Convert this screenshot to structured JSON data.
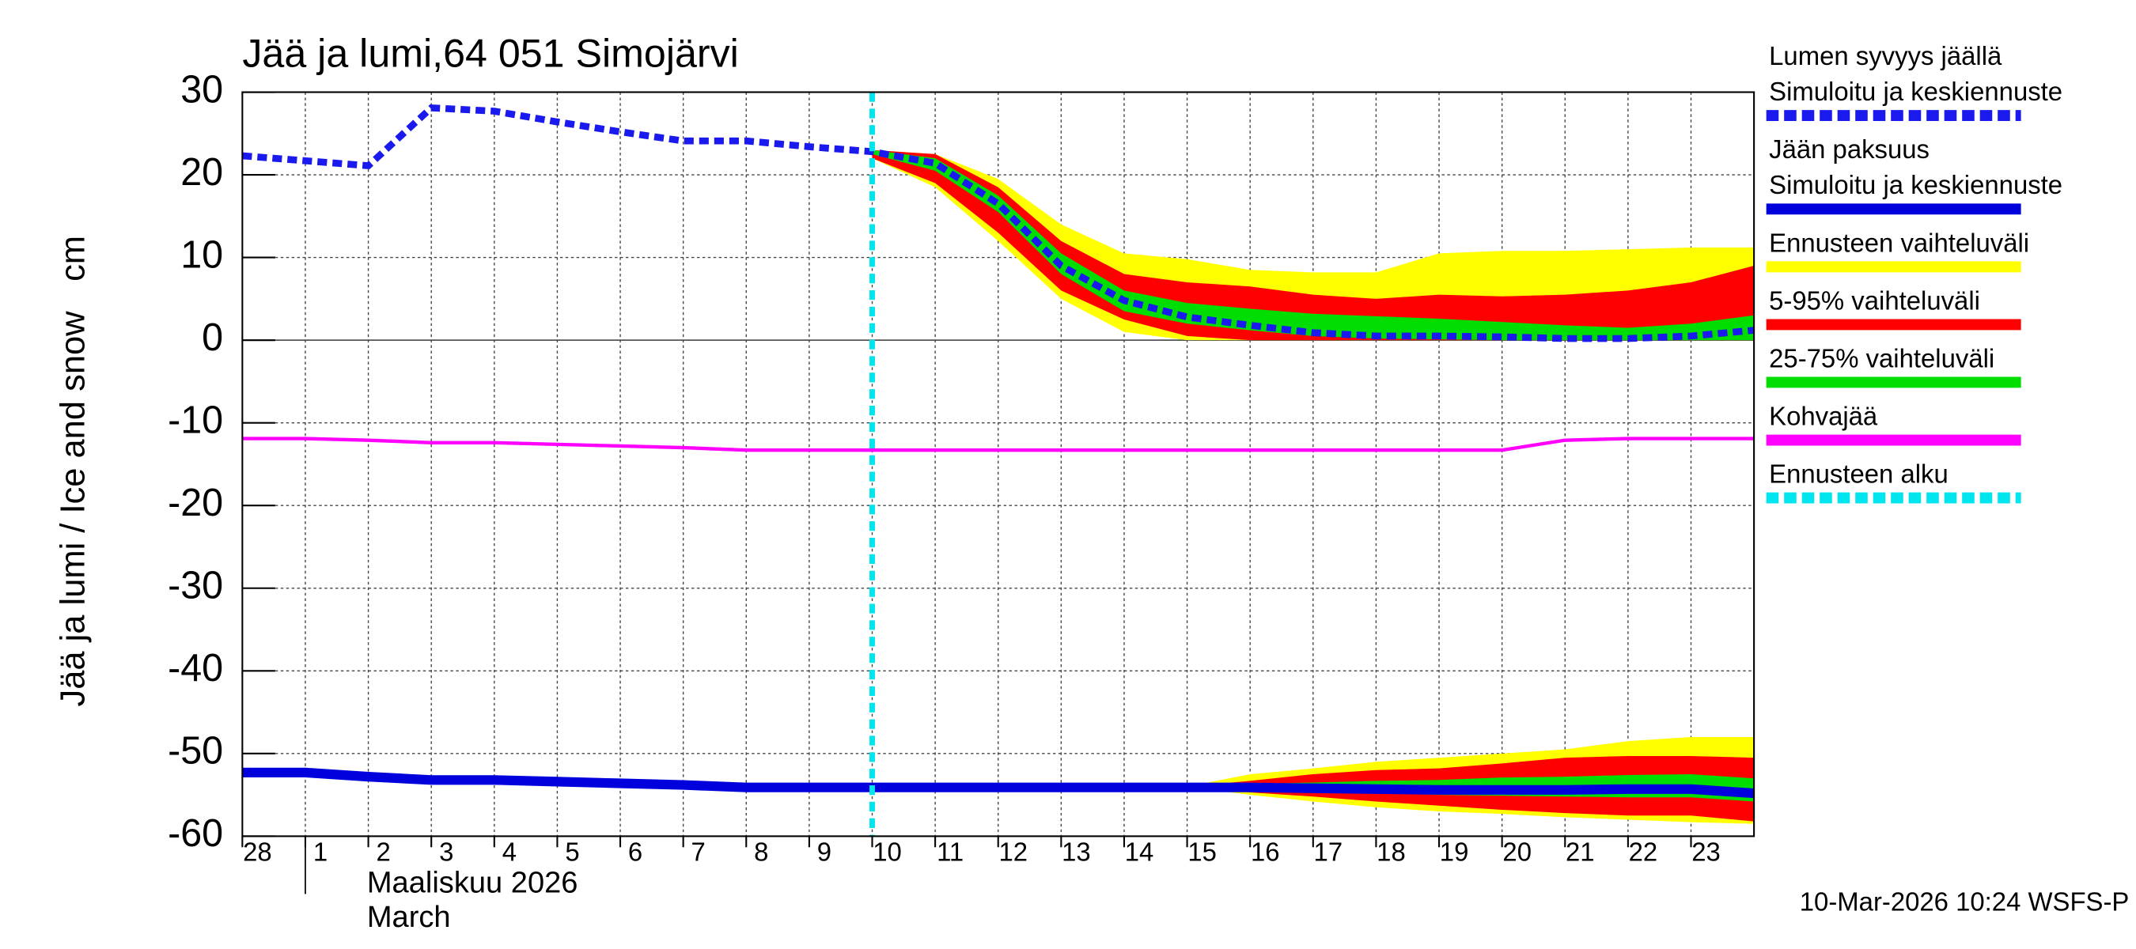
{
  "chart_data": {
    "type": "line",
    "title": "Jää ja lumi,64 051 Simojärvi",
    "y_label": "Jää ja lumi / Ice and snow",
    "y_unit": "cm",
    "x_month_label": "Maaliskuu 2026",
    "x_month_label_en": "March",
    "footer": "10-Mar-2026 10:24 WSFS-P",
    "xlim": [
      0,
      24
    ],
    "ylim": [
      -60,
      30
    ],
    "yticks": [
      -60,
      -50,
      -40,
      -30,
      -20,
      -10,
      0,
      10,
      20,
      30
    ],
    "xticks": [
      {
        "value": 0,
        "label": "28"
      },
      {
        "value": 1,
        "label": "1"
      },
      {
        "value": 2,
        "label": "2"
      },
      {
        "value": 3,
        "label": "3"
      },
      {
        "value": 4,
        "label": "4"
      },
      {
        "value": 5,
        "label": "5"
      },
      {
        "value": 6,
        "label": "6"
      },
      {
        "value": 7,
        "label": "7"
      },
      {
        "value": 8,
        "label": "8"
      },
      {
        "value": 9,
        "label": "9"
      },
      {
        "value": 10,
        "label": "10"
      },
      {
        "value": 11,
        "label": "11"
      },
      {
        "value": 12,
        "label": "12"
      },
      {
        "value": 13,
        "label": "13"
      },
      {
        "value": 14,
        "label": "14"
      },
      {
        "value": 15,
        "label": "15"
      },
      {
        "value": 16,
        "label": "16"
      },
      {
        "value": 17,
        "label": "17"
      },
      {
        "value": 18,
        "label": "18"
      },
      {
        "value": 19,
        "label": "19"
      },
      {
        "value": 20,
        "label": "20"
      },
      {
        "value": 21,
        "label": "21"
      },
      {
        "value": 22,
        "label": "22"
      },
      {
        "value": 23,
        "label": "23"
      }
    ],
    "month_start": 1,
    "grid": true,
    "forecast_start": 10,
    "bands": [
      {
        "color": "#ffff00",
        "x": [
          10,
          11,
          12,
          13,
          14,
          15,
          16,
          17,
          18,
          19,
          20,
          21,
          22,
          23,
          24
        ],
        "upper": [
          23,
          22.5,
          19.5,
          14,
          10.5,
          9.8,
          8.5,
          8.2,
          8.2,
          10.5,
          10.8,
          10.8,
          11,
          11.2,
          11.2
        ],
        "lower": [
          22,
          18.5,
          12,
          5,
          1,
          0,
          0,
          0,
          0,
          0,
          0,
          0,
          0,
          0,
          0
        ]
      },
      {
        "color": "#ff0000",
        "x": [
          10,
          11,
          12,
          13,
          14,
          15,
          16,
          17,
          18,
          19,
          20,
          21,
          22,
          23,
          24
        ],
        "upper": [
          23,
          22.5,
          18.5,
          12,
          8,
          7,
          6.5,
          5.5,
          5,
          5.5,
          5.3,
          5.5,
          6,
          7,
          9
        ],
        "lower": [
          22,
          19,
          13,
          6,
          2.5,
          0.5,
          0,
          0,
          0,
          0,
          0,
          0,
          0,
          0,
          0
        ]
      },
      {
        "color": "#00dd00",
        "x": [
          10,
          11,
          12,
          13,
          14,
          15,
          16,
          17,
          18,
          19,
          20,
          21,
          22,
          23,
          24
        ],
        "upper": [
          23,
          22,
          17.5,
          10.5,
          6,
          4.5,
          3.8,
          3.2,
          2.9,
          2.6,
          2.2,
          1.8,
          1.5,
          2,
          3
        ],
        "lower": [
          22.5,
          20.5,
          15.5,
          8,
          3.5,
          2,
          1.2,
          0.5,
          0.2,
          0.1,
          0,
          0,
          0,
          0,
          0
        ]
      },
      {
        "color": "#ffff00",
        "x": [
          15,
          16,
          17,
          18,
          19,
          20,
          21,
          22,
          23,
          24
        ],
        "upper": [
          -54,
          -52.5,
          -51.8,
          -51,
          -50.5,
          -50,
          -49.5,
          -48.5,
          -48,
          -48
        ],
        "lower": [
          -54,
          -55,
          -55.8,
          -56.5,
          -57,
          -57.3,
          -57.7,
          -58,
          -58.3,
          -58.5
        ]
      },
      {
        "color": "#ff0000",
        "x": [
          15,
          16,
          17,
          18,
          19,
          20,
          21,
          22,
          23,
          24
        ],
        "upper": [
          -54,
          -53.3,
          -52.5,
          -52,
          -51.8,
          -51.2,
          -50.5,
          -50.3,
          -50.3,
          -50.5
        ],
        "lower": [
          -54,
          -54.7,
          -55.2,
          -55.8,
          -56.3,
          -56.8,
          -57.2,
          -57.5,
          -57.5,
          -58.2
        ]
      },
      {
        "color": "#00dd00",
        "x": [
          15,
          16,
          17,
          18,
          19,
          20,
          21,
          22,
          23,
          24
        ],
        "upper": [
          -54,
          -53.7,
          -53.5,
          -53.3,
          -53.2,
          -52.9,
          -52.8,
          -52.6,
          -52.5,
          -53
        ],
        "lower": [
          -54,
          -54.3,
          -54.6,
          -54.8,
          -55,
          -55.1,
          -55.2,
          -55.3,
          -55.3,
          -55.8
        ]
      }
    ],
    "x": [
      0,
      1,
      2,
      3,
      4,
      5,
      6,
      7,
      8,
      9,
      10,
      11,
      12,
      13,
      14,
      15,
      16,
      17,
      18,
      19,
      20,
      21,
      22,
      23,
      24
    ],
    "series": [
      {
        "color": "#ff00ff",
        "dash": false,
        "width": 2.5,
        "values": [
          -11.9,
          -11.9,
          -12.1,
          -12.4,
          -12.4,
          -12.6,
          -12.8,
          -13,
          -13.3,
          -13.3,
          -13.3,
          -13.3,
          -13.3,
          -13.3,
          -13.3,
          -13.3,
          -13.3,
          -13.3,
          -13.3,
          -13.3,
          -13.3,
          -12.1,
          -11.9,
          -11.9,
          -11.9
        ]
      },
      {
        "color": "#0000dd",
        "dash": false,
        "width": 7,
        "values": [
          -52.3,
          -52.3,
          -52.8,
          -53.2,
          -53.2,
          -53.4,
          -53.6,
          -53.8,
          -54.1,
          -54.1,
          -54.1,
          -54.1,
          -54.1,
          -54.1,
          -54.1,
          -54.1,
          -54.1,
          -54.2,
          -54.3,
          -54.4,
          -54.4,
          -54.4,
          -54.3,
          -54.3,
          -54.8
        ]
      },
      {
        "color": "#1a1aee",
        "dash": true,
        "width": 5,
        "values": [
          22.3,
          21.7,
          21.1,
          28.1,
          27.7,
          26.4,
          25.2,
          24.1,
          24.1,
          23.4,
          22.8,
          21.4,
          16.5,
          9,
          4.8,
          2.8,
          1.8,
          0.9,
          0.5,
          0.5,
          0.4,
          0.2,
          0.2,
          0.5,
          1.2
        ]
      }
    ],
    "forecast_color": "#00e5ee",
    "legend": [
      {
        "text": [
          "Lumen syvyys jäällä",
          "Simuloitu ja keskiennuste"
        ],
        "color": "#1a1aee",
        "dash": true
      },
      {
        "text": [
          "Jään paksuus",
          "Simuloitu ja keskiennuste"
        ],
        "color": "#0000dd",
        "dash": false
      },
      {
        "text": [
          "Ennusteen vaihteluväli"
        ],
        "color": "#ffff00",
        "dash": false
      },
      {
        "text": [
          "5-95% vaihteluväli"
        ],
        "color": "#ff0000",
        "dash": false
      },
      {
        "text": [
          "25-75% vaihteluväli"
        ],
        "color": "#00dd00",
        "dash": false
      },
      {
        "text": [
          "Kohvajää"
        ],
        "color": "#ff00ff",
        "dash": false
      },
      {
        "text": [
          "Ennusteen alku"
        ],
        "color": "#00e5ee",
        "dash": true
      }
    ]
  }
}
